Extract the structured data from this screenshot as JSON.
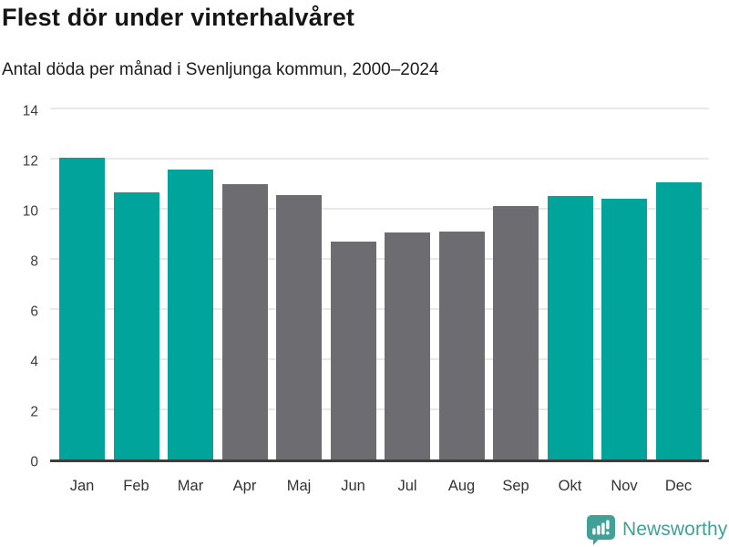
{
  "header": {
    "title": "Flest dör under vinterhalvåret",
    "subtitle": "Antal döda per månad i Svenljunga kommun, 2000–2024"
  },
  "chart_data": {
    "type": "bar",
    "title": "Flest dör under vinterhalvåret",
    "subtitle": "Antal döda per månad i Svenljunga kommun, 2000–2024",
    "categories": [
      "Jan",
      "Feb",
      "Mar",
      "Apr",
      "Maj",
      "Jun",
      "Jul",
      "Aug",
      "Sep",
      "Okt",
      "Nov",
      "Dec"
    ],
    "values": [
      12.05,
      10.65,
      11.55,
      11.0,
      10.55,
      8.7,
      9.05,
      9.1,
      10.1,
      10.5,
      10.4,
      11.05
    ],
    "bar_colors": [
      "teal",
      "teal",
      "teal",
      "gray",
      "gray",
      "gray",
      "gray",
      "gray",
      "gray",
      "teal",
      "teal",
      "teal"
    ],
    "colors": {
      "teal": "#00a49b",
      "gray": "#6c6c71"
    },
    "ylim": [
      0,
      14
    ],
    "yticks": [
      0,
      2,
      4,
      6,
      8,
      10,
      12,
      14
    ],
    "xlabel": "",
    "ylabel": "",
    "grid": true,
    "legend": "none"
  },
  "footer": {
    "brand": "Newsworthy",
    "logo_icon": "newsworthy-speech-bubble-bar-chart-icon",
    "brand_color": "#41a098"
  }
}
